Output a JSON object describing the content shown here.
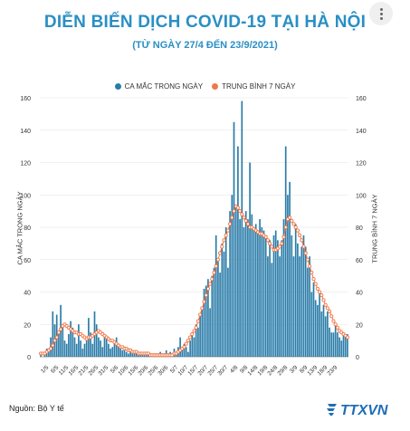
{
  "header": {
    "title": "DIỄN BIẾN DỊCH COVID-19 TẠI HÀ NỘI",
    "subtitle": "(TỪ NGÀY 27/4 ĐẾN 23/9/2021)"
  },
  "footer": {
    "source": "Nguồn: Bộ Y tế",
    "logo_text": "TTXVN"
  },
  "icons": {
    "menu": "more-vertical-icon"
  },
  "colors": {
    "bars": "#2a7ca8",
    "line": "#f0774a",
    "title": "#2a8fc4"
  },
  "chart_data": {
    "type": "bar",
    "title": "DIỄN BIẾN DỊCH COVID-19 TẠI HÀ NỘI",
    "subtitle": "(TỪ NGÀY 27/4 ĐẾN 23/9/2021)",
    "ylabel_left": "CA MẮC TRONG NGÀY",
    "ylabel_right": "TRUNG BÌNH 7 NGÀY",
    "ylim": [
      0,
      160
    ],
    "yticks": [
      0,
      20,
      40,
      60,
      80,
      100,
      120,
      140,
      160
    ],
    "legend_position": "top-center",
    "xtick_labels": [
      "1/5",
      "6/5",
      "11/5",
      "16/5",
      "21/5",
      "26/5",
      "31/5",
      "5/6",
      "10/6",
      "15/6",
      "20/6",
      "25/6",
      "30/6",
      "5/7",
      "10/7",
      "15/7",
      "20/7",
      "25/7",
      "30/7",
      "4/8",
      "9/8",
      "14/8",
      "19/8",
      "24/8",
      "29/8",
      "3/9",
      "8/9",
      "13/9",
      "18/9",
      "23/9"
    ],
    "x_start": "27/4",
    "x_end": "23/9",
    "series": [
      {
        "name": "CA MẮC TRONG NGÀY",
        "kind": "bar",
        "values": [
          3,
          0,
          2,
          5,
          4,
          12,
          28,
          20,
          26,
          15,
          32,
          18,
          10,
          8,
          14,
          22,
          18,
          12,
          8,
          20,
          10,
          5,
          8,
          12,
          24,
          15,
          8,
          28,
          20,
          12,
          10,
          6,
          14,
          12,
          8,
          5,
          6,
          10,
          12,
          8,
          6,
          4,
          6,
          3,
          2,
          4,
          3,
          2,
          4,
          1,
          2,
          2,
          1,
          3,
          1,
          2,
          1,
          1,
          2,
          1,
          3,
          2,
          1,
          4,
          2,
          3,
          2,
          5,
          3,
          6,
          12,
          4,
          8,
          6,
          3,
          10,
          15,
          12,
          20,
          18,
          25,
          30,
          42,
          44,
          48,
          30,
          50,
          55,
          75,
          60,
          52,
          70,
          65,
          80,
          55,
          90,
          100,
          145,
          92,
          130,
          85,
          158,
          80,
          90,
          85,
          120,
          88,
          80,
          82,
          76,
          85,
          80,
          78,
          75,
          62,
          72,
          58,
          75,
          78,
          72,
          62,
          72,
          85,
          130,
          100,
          108,
          75,
          62,
          82,
          70,
          62,
          68,
          75,
          68,
          55,
          62,
          40,
          46,
          35,
          32,
          40,
          28,
          32,
          25,
          28,
          18,
          15,
          15,
          20,
          15,
          12,
          10,
          15,
          12,
          14
        ]
      },
      {
        "name": "TRUNG BÌNH 7 NGÀY",
        "kind": "line",
        "values": [
          2,
          2,
          2,
          3,
          4,
          5,
          7,
          10,
          12,
          15,
          17,
          19,
          20,
          19,
          18,
          17,
          16,
          15,
          15,
          14,
          14,
          13,
          12,
          11,
          12,
          12,
          13,
          14,
          15,
          16,
          15,
          14,
          13,
          12,
          11,
          10,
          10,
          9,
          8,
          7,
          6,
          6,
          5,
          5,
          4,
          4,
          3,
          3,
          3,
          2,
          2,
          2,
          2,
          2,
          2,
          1,
          1,
          1,
          1,
          1,
          1,
          1,
          1,
          1,
          1,
          1,
          1,
          2,
          2,
          3,
          4,
          5,
          6,
          8,
          10,
          12,
          14,
          16,
          18,
          22,
          26,
          30,
          34,
          38,
          42,
          45,
          48,
          52,
          56,
          60,
          64,
          68,
          72,
          75,
          78,
          82,
          86,
          90,
          93,
          92,
          90,
          88,
          86,
          84,
          82,
          80,
          80,
          79,
          78,
          77,
          76,
          76,
          75,
          74,
          72,
          70,
          68,
          66,
          66,
          67,
          68,
          70,
          74,
          80,
          85,
          86,
          84,
          82,
          80,
          78,
          75,
          72,
          68,
          64,
          60,
          56,
          52,
          48,
          45,
          42,
          40,
          38,
          35,
          32,
          30,
          28,
          25,
          22,
          20,
          18,
          16,
          15,
          14,
          13,
          12
        ]
      }
    ]
  }
}
